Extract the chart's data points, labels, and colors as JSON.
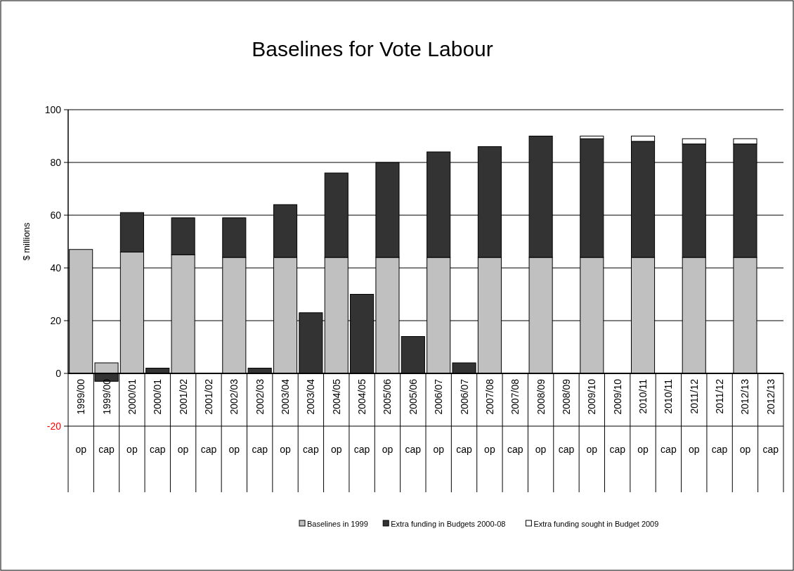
{
  "chart_data": {
    "type": "bar",
    "title": "Baselines for Vote Labour",
    "ylabel": "$ millions",
    "categories": [
      "1999/00 op",
      "1999/00 cap",
      "2000/01 op",
      "2000/01 cap",
      "2001/02 op",
      "2001/02 cap",
      "2002/03 op",
      "2002/03 cap",
      "2003/04 op",
      "2003/04 cap",
      "2004/05 op",
      "2004/05 cap",
      "2005/06 op",
      "2005/06 cap",
      "2006/07 op",
      "2006/07 cap",
      "2007/08 op",
      "2007/08 cap",
      "2008/09 op",
      "2008/09 cap",
      "2009/10 op",
      "2009/10 cap",
      "2010/11 op",
      "2010/11 cap",
      "2011/12 op",
      "2011/12 cap",
      "2012/13 op",
      "2012/13 cap"
    ],
    "stacked": true,
    "series": [
      {
        "name": "Baselines in 1999",
        "color": "#c0c0c0",
        "values": [
          47,
          4,
          46,
          null,
          45,
          null,
          44,
          null,
          44,
          null,
          44,
          null,
          44,
          null,
          44,
          null,
          44,
          null,
          44,
          null,
          44,
          null,
          44,
          null,
          44,
          null,
          44,
          null
        ]
      },
      {
        "name": "Extra funding in Budgets 2000-08",
        "color": "#333333",
        "values": [
          null,
          -3,
          15,
          2,
          14,
          null,
          15,
          2,
          20,
          23,
          32,
          30,
          36,
          14,
          40,
          4,
          42,
          null,
          46,
          null,
          45,
          null,
          44,
          null,
          43,
          null,
          43,
          null
        ]
      },
      {
        "name": "Extra funding sought in Budget 2009",
        "color": "#ffffff",
        "values": [
          null,
          null,
          null,
          null,
          null,
          null,
          null,
          null,
          null,
          null,
          null,
          null,
          null,
          null,
          null,
          null,
          null,
          null,
          null,
          null,
          1,
          null,
          2,
          null,
          2,
          null,
          2,
          null
        ]
      }
    ],
    "ylim": [
      -20,
      100
    ],
    "yticks": [
      -20,
      0,
      20,
      40,
      60,
      80,
      100
    ],
    "grid": "y",
    "legend": "bottom"
  }
}
